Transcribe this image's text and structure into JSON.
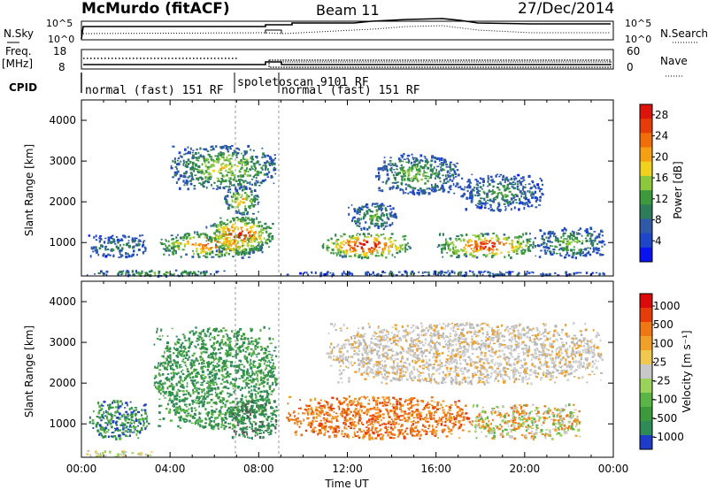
{
  "header": {
    "station": "McMurdo (fitACF)",
    "beam": "Beam 11",
    "date": "27/Dec/2014"
  },
  "strip_panels": {
    "nsky_label": "N.Sky",
    "nsky_ticks": [
      "10^5",
      "10^0"
    ],
    "nsearch_label": "N.Search",
    "nsearch_ticks": [
      "10^5",
      "10^0"
    ],
    "freq_label_line1": "Freq.",
    "freq_label_line2": "[MHz]",
    "freq_ticks": [
      "18",
      "8"
    ],
    "nave_label": "Nave",
    "nave_ticks": [
      "60",
      "0"
    ],
    "cpid_label": "CPID",
    "cpid_segments": [
      {
        "label": "normal (fast) 151 RF",
        "start_hour": 0,
        "end_hour": 7.0
      },
      {
        "label": "spoletoscan 9101 RF",
        "start_hour": 7.0,
        "end_hour": 9.0
      },
      {
        "label": "normal (fast) 151 RF",
        "start_hour": 9.0,
        "end_hour": 24.0
      }
    ]
  },
  "chart_data": [
    {
      "type": "heatmap",
      "name": "power-panel",
      "ylabel": "Slant Range [km]",
      "yticks": [
        "1000",
        "2000",
        "3000",
        "4000"
      ],
      "ylim": [
        180,
        4500
      ],
      "xlim": [
        0,
        24
      ],
      "colorbar": {
        "label": "Power [dB]",
        "tick_labels": [
          "4",
          "8",
          "12",
          "16",
          "20",
          "24",
          "28"
        ],
        "range": [
          0,
          30
        ],
        "colors": [
          "#0a14f0",
          "#1e46c8",
          "#2f5aa8",
          "#2e7d5a",
          "#3c9a3c",
          "#8cc83c",
          "#f0d21e",
          "#f5a014",
          "#f06e0a",
          "#e63c0a",
          "#dc140a"
        ]
      },
      "echo_regions": [
        {
          "t0": 0.2,
          "t1": 6.8,
          "r0": 200,
          "r1": 340,
          "level": 10
        },
        {
          "t0": 0.3,
          "t1": 3.0,
          "r0": 650,
          "r1": 1200,
          "level": 8
        },
        {
          "t0": 3.5,
          "t1": 8.2,
          "r0": 650,
          "r1": 1300,
          "level": 18
        },
        {
          "t0": 5.6,
          "t1": 8.6,
          "r0": 750,
          "r1": 1650,
          "level": 20
        },
        {
          "t0": 6.4,
          "t1": 8.0,
          "r0": 1700,
          "r1": 2400,
          "level": 14
        },
        {
          "t0": 4.0,
          "t1": 8.8,
          "r0": 2300,
          "r1": 3400,
          "level": 12
        },
        {
          "t0": 10.8,
          "t1": 14.8,
          "r0": 650,
          "r1": 1250,
          "level": 22
        },
        {
          "t0": 12.0,
          "t1": 14.2,
          "r0": 1300,
          "r1": 2000,
          "level": 9
        },
        {
          "t0": 13.2,
          "t1": 17.0,
          "r0": 2200,
          "r1": 3200,
          "level": 10
        },
        {
          "t0": 16.0,
          "t1": 20.5,
          "r0": 650,
          "r1": 1250,
          "level": 20
        },
        {
          "t0": 20.5,
          "t1": 23.6,
          "r0": 650,
          "r1": 1400,
          "level": 10
        },
        {
          "t0": 17.0,
          "t1": 20.8,
          "r0": 1800,
          "r1": 2700,
          "level": 8
        },
        {
          "t0": 9.0,
          "t1": 23.8,
          "r0": 200,
          "r1": 320,
          "level": 6
        }
      ]
    },
    {
      "type": "heatmap",
      "name": "velocity-panel",
      "ylabel": "Slant Range [km]",
      "yticks": [
        "1000",
        "2000",
        "3000",
        "4000"
      ],
      "ylim": [
        180,
        4500
      ],
      "xlabel": "Time UT",
      "xticks": [
        "00:00",
        "04:00",
        "08:00",
        "12:00",
        "16:00",
        "20:00",
        "00:00"
      ],
      "xlim": [
        0,
        24
      ],
      "colorbar": {
        "label": "Velocity [m s⁻¹]",
        "tick_labels": [
          "1000",
          "500",
          "100",
          "25",
          "-25",
          "-100",
          "-500",
          "-1000"
        ],
        "colors": [
          "#1e3cc8",
          "#2e8b57",
          "#3c9a3c",
          "#5ab446",
          "#9bd25a",
          "#c8c8c8",
          "#f0c850",
          "#f0a028",
          "#f07814",
          "#e63c0a",
          "#dc0a0a"
        ]
      },
      "echo_regions": [
        {
          "t0": 0.2,
          "t1": 3.2,
          "r0": 200,
          "r1": 360,
          "class": "ground"
        },
        {
          "t0": 0.3,
          "t1": 3.0,
          "r0": 650,
          "r1": 1600,
          "class": "toward-slow"
        },
        {
          "t0": 3.2,
          "t1": 8.8,
          "r0": 900,
          "r1": 3400,
          "class": "toward"
        },
        {
          "t0": 6.6,
          "t1": 8.8,
          "r0": 650,
          "r1": 1600,
          "class": "toward-dense"
        },
        {
          "t0": 9.2,
          "t1": 17.5,
          "r0": 650,
          "r1": 1700,
          "class": "away"
        },
        {
          "t0": 17.5,
          "t1": 22.5,
          "r0": 650,
          "r1": 1500,
          "class": "mixed"
        },
        {
          "t0": 11.0,
          "t1": 23.5,
          "r0": 2000,
          "r1": 3500,
          "class": "ground-scatter"
        }
      ]
    }
  ]
}
